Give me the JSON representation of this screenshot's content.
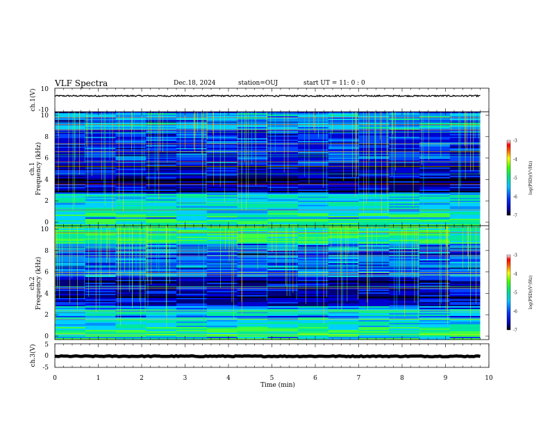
{
  "header": {
    "title": "VLF Spectra",
    "date": "Dec.18, 2024",
    "station": "station=OUJ",
    "start": "start  UT =   11: 0  : 0"
  },
  "chart_data": [
    {
      "type": "line",
      "panel": "ch1-waveform",
      "ylabel": "ch.1(V)",
      "ylim": [
        -10,
        10
      ],
      "yticks": [
        "10",
        "-10"
      ],
      "xlim": [
        0,
        10
      ],
      "series": [
        {
          "values_description_free": true,
          "baseline": 3.5,
          "noise_amplitude": 0.6
        }
      ]
    },
    {
      "type": "heatmap",
      "panel": "ch1-spectrogram",
      "ylabel_line1": "ch.1",
      "ylabel_line2": "Frequency (kHz)",
      "ylim": [
        0,
        10
      ],
      "yticks": [
        "0",
        "2",
        "4",
        "6",
        "8",
        "10"
      ],
      "xlim": [
        0,
        9.8
      ],
      "colorbar": {
        "label": "log(PSD)(V²/Hz)",
        "range": [
          -7,
          -3
        ],
        "ticks": [
          "-3",
          "-4",
          "-5",
          "-6",
          "-7"
        ]
      }
    },
    {
      "type": "heatmap",
      "panel": "ch2-spectrogram",
      "ylabel_line1": "ch.2",
      "ylabel_line2": "Frequency (kHz)",
      "ylim": [
        0,
        10
      ],
      "yticks": [
        "0",
        "2",
        "4",
        "6",
        "8",
        "10"
      ],
      "xlim": [
        0,
        9.8
      ],
      "colorbar": {
        "label": "log(PSD)(V²/Hz)",
        "range": [
          -7,
          -3
        ],
        "ticks": [
          "-3",
          "-4",
          "-5",
          "-6",
          "-7"
        ]
      }
    },
    {
      "type": "line",
      "panel": "ch3-waveform",
      "ylabel": "ch.3(V)",
      "ylim": [
        -5,
        5
      ],
      "yticks": [
        "5",
        "0",
        "-5"
      ],
      "xlim": [
        0,
        10
      ],
      "series": [
        {
          "baseline": -0.3,
          "noise_amplitude": 0.2
        }
      ]
    }
  ],
  "xaxis": {
    "label": "Time (min)",
    "ticks": [
      "0",
      "1",
      "2",
      "3",
      "4",
      "5",
      "6",
      "7",
      "8",
      "9",
      "10"
    ]
  }
}
